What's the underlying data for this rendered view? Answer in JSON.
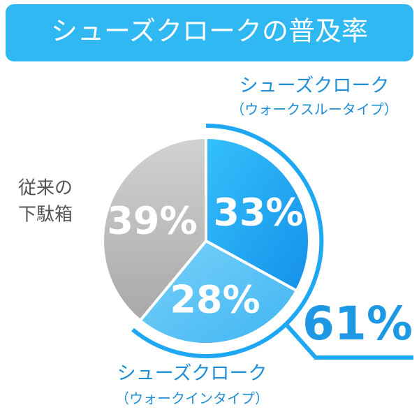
{
  "chart_data": {
    "type": "pie",
    "title": "シューズクロークの普及率",
    "categories": [
      [
        "シューズクローク",
        "（ウォークスルータイプ）"
      ],
      [
        "シューズクローク",
        "（ウォークインタイプ）"
      ],
      [
        "従来の",
        "下駄箱"
      ]
    ],
    "values": [
      33,
      28,
      39
    ],
    "value_labels": [
      "33%",
      "28%",
      "39%"
    ],
    "colors": [
      "#1aa6f4",
      "#5cc3f6",
      "#c4c4c4"
    ],
    "label_colors": [
      "#1e8fd6",
      "#1e8fd6",
      "#555555"
    ],
    "annotation": "61%"
  }
}
